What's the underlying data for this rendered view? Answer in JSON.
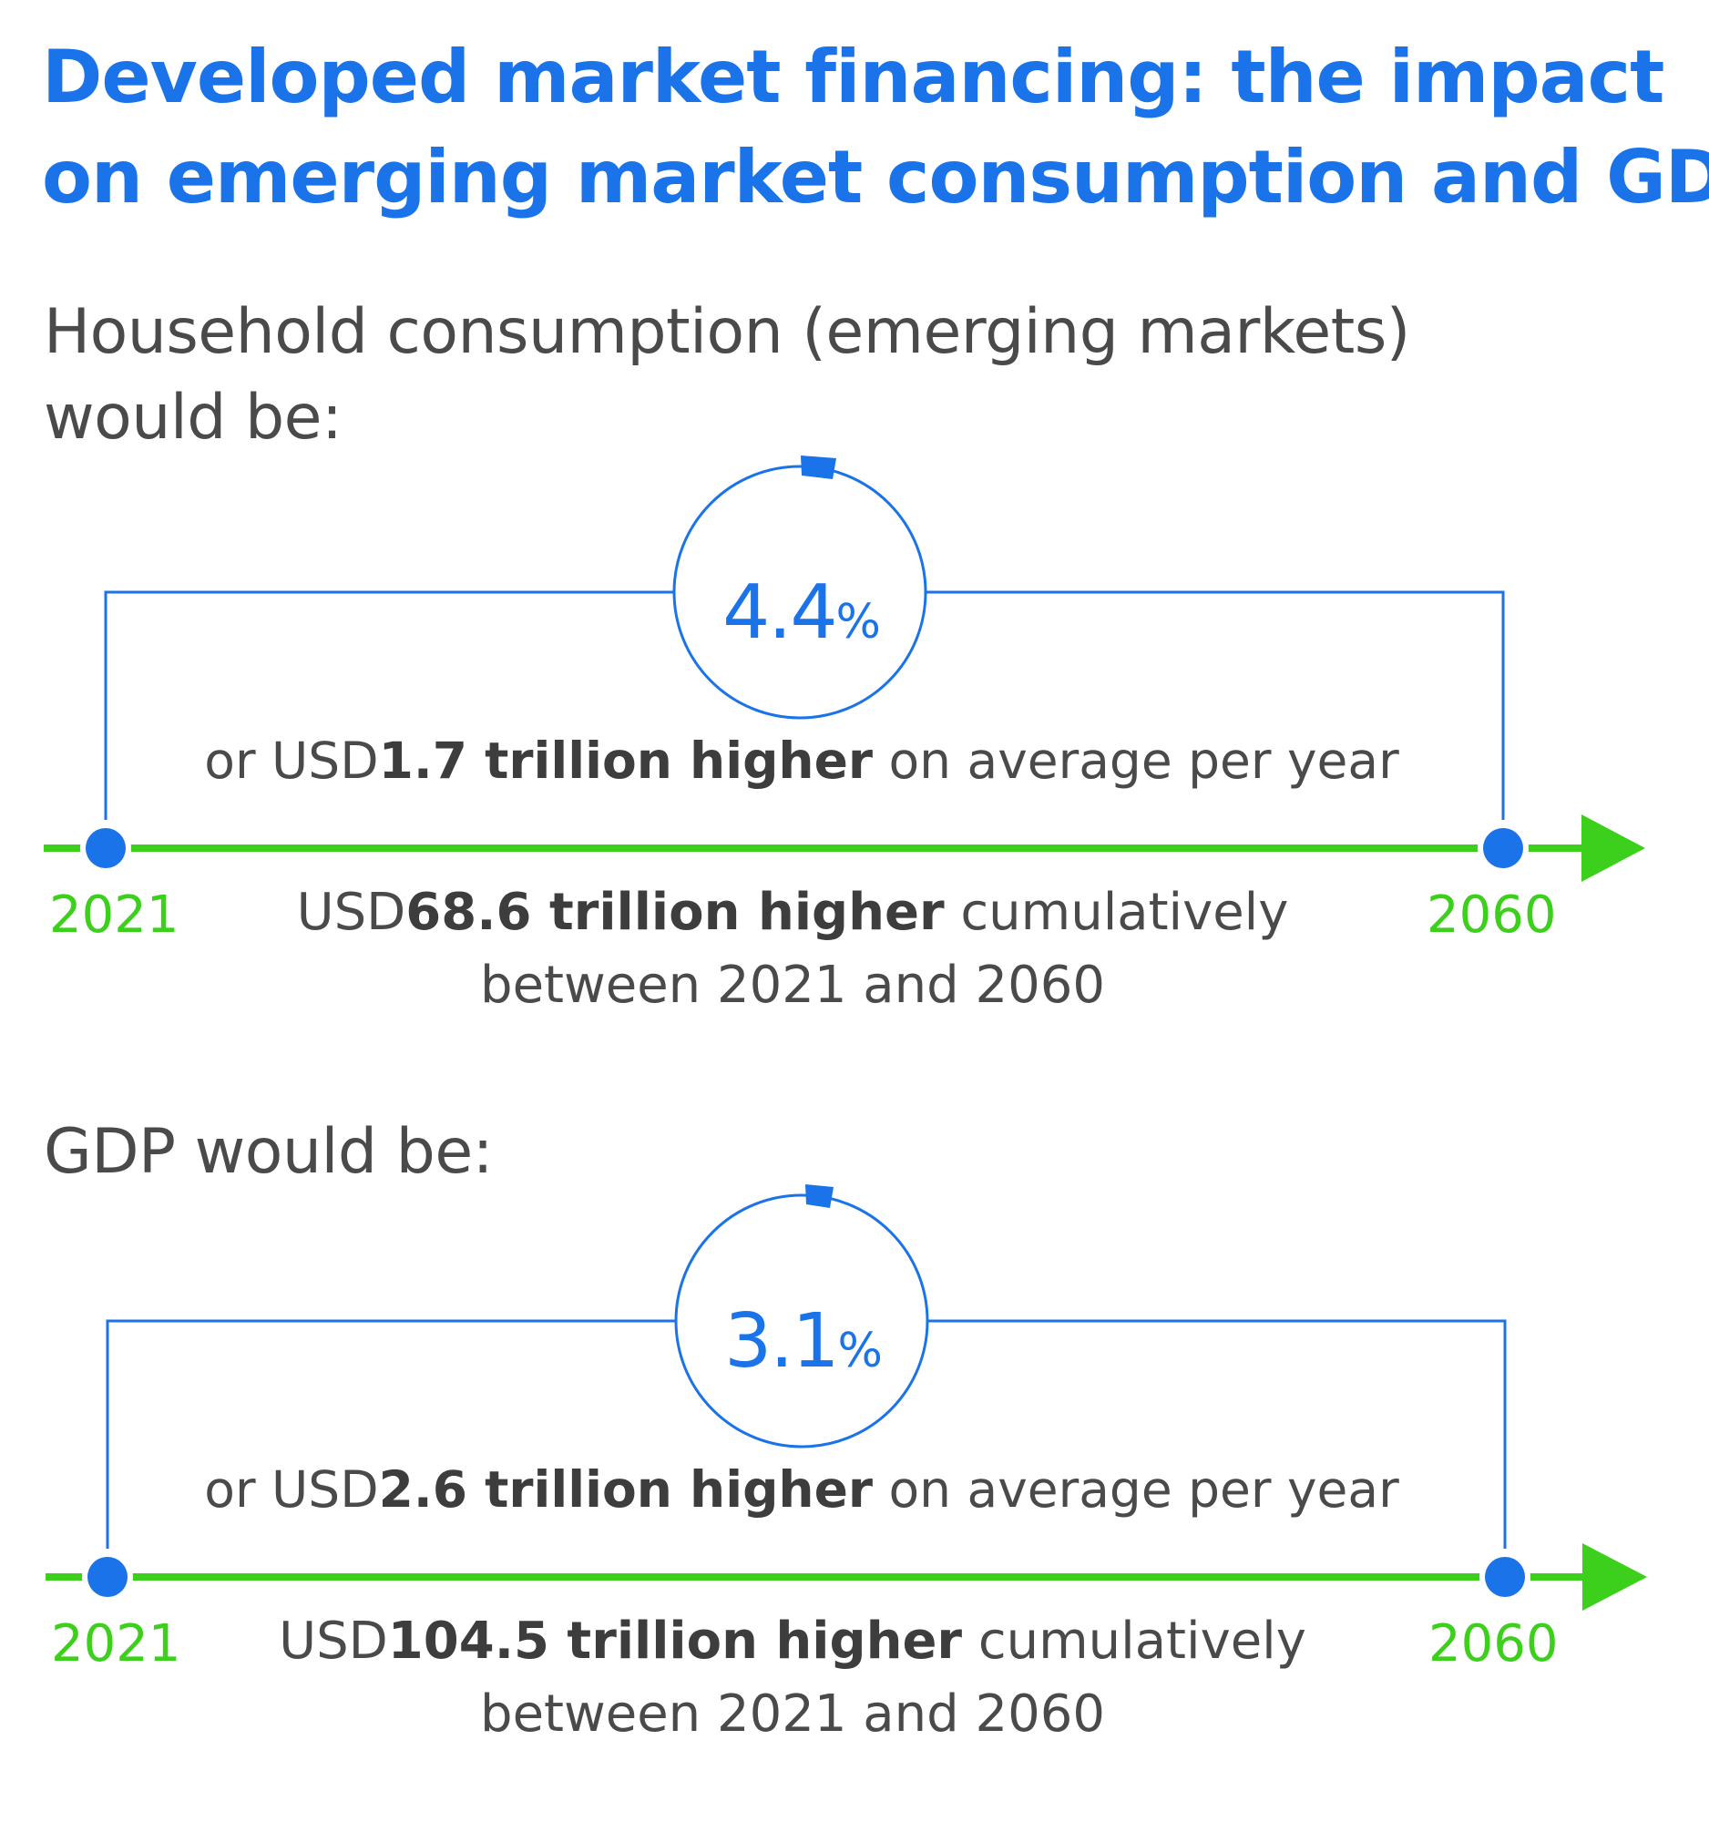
{
  "title": {
    "line1": "Developed market financing: the impact",
    "line2": "on emerging market consumption and GDP"
  },
  "colors": {
    "title_blue": "#1a73e8",
    "timeline_green": "#3ccf1c",
    "text_gray": "#4a4a4a"
  },
  "sections": [
    {
      "heading_line1": "Household consumption (emerging markets)",
      "heading_line2": "would be:",
      "percent_value": "4.4",
      "percent_unit": "%",
      "average_prefix": "or USD",
      "average_bold": "1.7 trillion higher",
      "average_suffix": " on average per year",
      "start_year": "2021",
      "end_year": "2060",
      "cumulative_prefix": "USD",
      "cumulative_bold": "68.6 trillion higher",
      "cumulative_suffix": " cumulatively",
      "cumulative_line2": "between 2021 and 2060"
    },
    {
      "heading_line1": "GDP would be:",
      "percent_value": "3.1",
      "percent_unit": "%",
      "average_prefix": "or USD",
      "average_bold": "2.6 trillion higher",
      "average_suffix": " on average per year",
      "start_year": "2021",
      "end_year": "2060",
      "cumulative_prefix": "USD",
      "cumulative_bold": "104.5 trillion higher",
      "cumulative_suffix": " cumulatively",
      "cumulative_line2": "between 2021 and 2060"
    }
  ]
}
